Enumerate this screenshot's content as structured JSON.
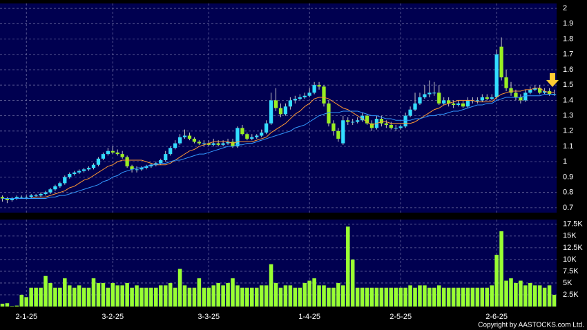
{
  "chart_data": {
    "type": "candlestick",
    "categories": [
      null,
      null,
      null,
      null,
      null,
      "2-1-25",
      null,
      null,
      null,
      null,
      null,
      null,
      null,
      null,
      null,
      null,
      null,
      null,
      null,
      null,
      null,
      null,
      null,
      "3-2-25",
      null,
      null,
      null,
      null,
      null,
      null,
      null,
      null,
      null,
      null,
      null,
      null,
      null,
      null,
      null,
      null,
      null,
      null,
      null,
      "3-3-25",
      null,
      null,
      null,
      null,
      null,
      null,
      null,
      null,
      null,
      null,
      null,
      null,
      null,
      null,
      null,
      null,
      null,
      null,
      null,
      null,
      "1-4-25",
      null,
      null,
      null,
      null,
      null,
      null,
      null,
      null,
      null,
      null,
      null,
      null,
      null,
      null,
      null,
      null,
      null,
      null,
      "2-5-25",
      null,
      null,
      null,
      null,
      null,
      null,
      null,
      null,
      null,
      null,
      null,
      null,
      null,
      null,
      null,
      null,
      null,
      null,
      null,
      "2-6-25",
      null,
      null,
      null,
      null,
      null,
      null,
      null,
      null,
      null,
      null,
      null,
      null
    ],
    "open": [
      0.77,
      0.76,
      0.75,
      0.76,
      0.77,
      0.77,
      0.77,
      0.78,
      0.78,
      0.79,
      0.8,
      0.82,
      0.84,
      0.86,
      0.9,
      0.92,
      0.93,
      0.94,
      0.95,
      0.96,
      0.98,
      1.02,
      1.05,
      1.07,
      1.06,
      1.05,
      1.03,
      0.97,
      0.95,
      0.95,
      0.96,
      0.97,
      0.98,
      0.99,
      1.01,
      1.05,
      1.09,
      1.12,
      1.16,
      1.17,
      1.15,
      1.13,
      1.12,
      1.12,
      1.11,
      1.12,
      1.11,
      1.12,
      1.13,
      1.1,
      1.22,
      1.18,
      1.15,
      1.16,
      1.17,
      1.19,
      1.25,
      1.4,
      1.35,
      1.31,
      1.36,
      1.4,
      1.41,
      1.42,
      1.43,
      1.45,
      1.5,
      1.49,
      1.38,
      1.25,
      1.2,
      1.12,
      1.27,
      1.26,
      1.26,
      1.27,
      1.3,
      1.25,
      1.22,
      1.28,
      1.25,
      1.24,
      1.22,
      1.22,
      1.23,
      1.3,
      1.34,
      1.38,
      1.42,
      1.44,
      1.45,
      1.45,
      1.38,
      1.4,
      1.38,
      1.37,
      1.38,
      1.36,
      1.4,
      1.4,
      1.4,
      1.42,
      1.41,
      1.42,
      1.75,
      1.55,
      1.48,
      1.45,
      1.42,
      1.4,
      1.45,
      1.47,
      1.48,
      1.45,
      1.46,
      1.44
    ],
    "high": [
      0.78,
      0.77,
      0.77,
      0.78,
      0.78,
      0.78,
      0.79,
      0.79,
      0.8,
      0.81,
      0.83,
      0.85,
      0.87,
      0.91,
      0.93,
      0.94,
      0.95,
      0.96,
      0.97,
      0.99,
      1.03,
      1.06,
      1.09,
      1.1,
      1.08,
      1.07,
      1.04,
      0.98,
      0.97,
      0.97,
      0.98,
      0.99,
      1.0,
      1.02,
      1.07,
      1.1,
      1.14,
      1.18,
      1.21,
      1.19,
      1.16,
      1.14,
      1.14,
      1.14,
      1.15,
      1.14,
      1.14,
      1.15,
      1.15,
      1.23,
      1.24,
      1.19,
      1.18,
      1.18,
      1.21,
      1.27,
      1.45,
      1.48,
      1.38,
      1.38,
      1.42,
      1.43,
      1.44,
      1.45,
      1.48,
      1.52,
      1.52,
      1.5,
      1.4,
      1.27,
      1.22,
      1.3,
      1.29,
      1.28,
      1.29,
      1.32,
      1.31,
      1.27,
      1.3,
      1.3,
      1.27,
      1.26,
      1.24,
      1.24,
      1.32,
      1.36,
      1.45,
      1.45,
      1.5,
      1.53,
      1.52,
      1.5,
      1.42,
      1.42,
      1.4,
      1.4,
      1.4,
      1.42,
      1.42,
      1.42,
      1.44,
      1.44,
      1.44,
      1.73,
      1.81,
      1.6,
      1.52,
      1.47,
      1.44,
      1.47,
      1.49,
      1.5,
      1.5,
      1.48,
      1.48,
      1.47
    ],
    "low": [
      0.74,
      0.73,
      0.74,
      0.75,
      0.76,
      0.76,
      0.76,
      0.77,
      0.77,
      0.78,
      0.79,
      0.81,
      0.83,
      0.85,
      0.89,
      0.91,
      0.92,
      0.93,
      0.94,
      0.95,
      0.97,
      1.01,
      1.04,
      1.05,
      1.04,
      1.02,
      0.96,
      0.93,
      0.93,
      0.94,
      0.95,
      0.96,
      0.97,
      0.98,
      1.0,
      1.04,
      1.08,
      1.11,
      1.15,
      1.14,
      1.12,
      1.11,
      1.1,
      1.1,
      1.1,
      1.1,
      1.1,
      1.11,
      1.09,
      1.09,
      1.17,
      1.14,
      1.14,
      1.15,
      1.16,
      1.18,
      1.24,
      1.33,
      1.29,
      1.3,
      1.34,
      1.38,
      1.4,
      1.41,
      1.42,
      1.44,
      1.47,
      1.36,
      1.23,
      1.17,
      1.13,
      1.11,
      1.24,
      1.24,
      1.25,
      1.26,
      1.24,
      1.2,
      1.21,
      1.23,
      1.22,
      1.21,
      1.2,
      1.21,
      1.22,
      1.29,
      1.33,
      1.37,
      1.41,
      1.42,
      1.43,
      1.37,
      1.37,
      1.36,
      1.35,
      1.36,
      1.35,
      1.35,
      1.38,
      1.38,
      1.39,
      1.4,
      1.4,
      1.41,
      1.53,
      1.46,
      1.43,
      1.4,
      1.38,
      1.39,
      1.44,
      1.46,
      1.44,
      1.44,
      1.43,
      1.43
    ],
    "close": [
      0.76,
      0.75,
      0.76,
      0.77,
      0.77,
      0.77,
      0.78,
      0.78,
      0.79,
      0.8,
      0.82,
      0.84,
      0.86,
      0.9,
      0.92,
      0.93,
      0.94,
      0.95,
      0.96,
      0.98,
      1.02,
      1.05,
      1.07,
      1.06,
      1.05,
      1.03,
      0.97,
      0.95,
      0.95,
      0.96,
      0.97,
      0.98,
      0.99,
      1.01,
      1.05,
      1.09,
      1.12,
      1.16,
      1.17,
      1.15,
      1.13,
      1.12,
      1.12,
      1.11,
      1.12,
      1.11,
      1.12,
      1.13,
      1.1,
      1.22,
      1.18,
      1.15,
      1.16,
      1.17,
      1.19,
      1.25,
      1.4,
      1.35,
      1.31,
      1.36,
      1.4,
      1.41,
      1.42,
      1.43,
      1.45,
      1.5,
      1.49,
      1.38,
      1.25,
      1.2,
      1.15,
      1.27,
      1.26,
      1.26,
      1.27,
      1.3,
      1.25,
      1.22,
      1.28,
      1.25,
      1.24,
      1.22,
      1.22,
      1.23,
      1.3,
      1.34,
      1.38,
      1.42,
      1.44,
      1.45,
      1.45,
      1.38,
      1.4,
      1.38,
      1.37,
      1.38,
      1.36,
      1.4,
      1.4,
      1.4,
      1.42,
      1.41,
      1.42,
      1.7,
      1.55,
      1.48,
      1.45,
      1.42,
      1.4,
      1.45,
      1.47,
      1.48,
      1.45,
      1.46,
      1.44,
      1.44
    ],
    "up_color": "#33ddff",
    "down_color": "#99ee22",
    "ylim": [
      0.668,
      2.032
    ],
    "yticks": [
      0.7,
      0.8,
      0.9,
      1,
      1.1,
      1.2,
      1.3,
      1.4,
      1.5,
      1.6,
      1.7,
      1.8,
      1.9,
      2
    ],
    "grid": true,
    "moving_averages": [
      {
        "color": "#ff9933",
        "values": [
          0.76,
          0.76,
          0.76,
          0.76,
          0.76,
          0.76,
          0.76,
          0.77,
          0.77,
          0.77,
          0.78,
          0.79,
          0.8,
          0.81,
          0.83,
          0.84,
          0.86,
          0.88,
          0.89,
          0.91,
          0.93,
          0.95,
          0.97,
          0.98,
          1.0,
          1.01,
          1.01,
          1.01,
          1.01,
          1.01,
          1.0,
          0.99,
          0.98,
          0.98,
          0.98,
          0.99,
          1.01,
          1.03,
          1.05,
          1.07,
          1.08,
          1.1,
          1.11,
          1.12,
          1.13,
          1.13,
          1.13,
          1.13,
          1.12,
          1.13,
          1.13,
          1.13,
          1.13,
          1.14,
          1.15,
          1.16,
          1.19,
          1.21,
          1.23,
          1.25,
          1.28,
          1.31,
          1.33,
          1.36,
          1.38,
          1.41,
          1.42,
          1.42,
          1.41,
          1.39,
          1.37,
          1.35,
          1.34,
          1.32,
          1.3,
          1.28,
          1.26,
          1.24,
          1.25,
          1.26,
          1.26,
          1.25,
          1.25,
          1.25,
          1.25,
          1.25,
          1.26,
          1.28,
          1.3,
          1.32,
          1.34,
          1.35,
          1.37,
          1.38,
          1.39,
          1.4,
          1.4,
          1.4,
          1.4,
          1.39,
          1.39,
          1.39,
          1.39,
          1.42,
          1.44,
          1.45,
          1.46,
          1.46,
          1.46,
          1.47,
          1.47,
          1.48,
          1.48,
          1.46,
          1.45,
          1.45
        ]
      },
      {
        "color": "#3399ff",
        "values": [
          0.76,
          0.76,
          0.76,
          0.76,
          0.76,
          0.76,
          0.76,
          0.76,
          0.76,
          0.76,
          0.77,
          0.77,
          0.78,
          0.78,
          0.79,
          0.8,
          0.81,
          0.82,
          0.83,
          0.84,
          0.85,
          0.87,
          0.88,
          0.9,
          0.91,
          0.93,
          0.94,
          0.95,
          0.96,
          0.96,
          0.97,
          0.98,
          0.98,
          0.99,
          0.99,
          1.0,
          1.01,
          1.01,
          1.02,
          1.03,
          1.04,
          1.05,
          1.05,
          1.06,
          1.07,
          1.08,
          1.09,
          1.1,
          1.1,
          1.11,
          1.11,
          1.12,
          1.12,
          1.13,
          1.14,
          1.15,
          1.16,
          1.17,
          1.18,
          1.19,
          1.2,
          1.22,
          1.23,
          1.24,
          1.26,
          1.28,
          1.3,
          1.31,
          1.32,
          1.32,
          1.32,
          1.33,
          1.33,
          1.33,
          1.33,
          1.32,
          1.31,
          1.3,
          1.3,
          1.29,
          1.28,
          1.28,
          1.27,
          1.27,
          1.27,
          1.27,
          1.28,
          1.28,
          1.29,
          1.3,
          1.3,
          1.31,
          1.31,
          1.32,
          1.33,
          1.33,
          1.34,
          1.35,
          1.36,
          1.37,
          1.37,
          1.38,
          1.38,
          1.4,
          1.41,
          1.42,
          1.42,
          1.42,
          1.42,
          1.43,
          1.43,
          1.43,
          1.43,
          1.44,
          1.44,
          1.44
        ]
      }
    ],
    "volume": {
      "type": "bar",
      "color": "#99ff33",
      "values": [
        600,
        700,
        100,
        200,
        2500,
        2000,
        4000,
        4000,
        4000,
        6500,
        5000,
        4000,
        4000,
        6000,
        4500,
        4000,
        4500,
        4000,
        4000,
        6000,
        5000,
        5000,
        4000,
        5000,
        4500,
        4500,
        5000,
        4000,
        4500,
        4000,
        4000,
        4000,
        4000,
        4500,
        4500,
        5000,
        4000,
        8000,
        4500,
        4000,
        4000,
        6000,
        4000,
        4000,
        4500,
        5000,
        4500,
        5000,
        6000,
        4500,
        4000,
        4000,
        4000,
        4000,
        4500,
        4500,
        9000,
        5000,
        4000,
        4500,
        4500,
        4000,
        4000,
        5000,
        5500,
        6000,
        4500,
        4500,
        4000,
        4000,
        5000,
        4500,
        17000,
        10000,
        4000,
        4000,
        4000,
        4000,
        4000,
        4000,
        4000,
        4000,
        4000,
        4000,
        4000,
        4500,
        4000,
        4500,
        4500,
        4000,
        4000,
        4500,
        4000,
        4000,
        4000,
        4000,
        4000,
        4000,
        4000,
        4000,
        4000,
        4000,
        4500,
        11000,
        16000,
        5500,
        6000,
        5000,
        5500,
        4500,
        5000,
        4500,
        4500,
        4000,
        4500,
        2500
      ],
      "ylim": [
        0,
        18500
      ],
      "yticks": [
        {
          "value": 2500,
          "label": "2.5K"
        },
        {
          "value": 5000,
          "label": "5K"
        },
        {
          "value": 7500,
          "label": "7.5K"
        },
        {
          "value": 10000,
          "label": "10K"
        },
        {
          "value": 12500,
          "label": "12.5K"
        },
        {
          "value": 15000,
          "label": "15K"
        },
        {
          "value": 17500,
          "label": "17.5K"
        }
      ]
    },
    "copyright": "Copyright by AASTOCKS.com Ltd."
  }
}
